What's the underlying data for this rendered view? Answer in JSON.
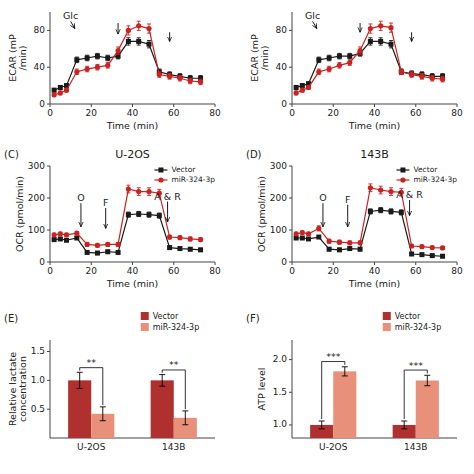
{
  "chart_data": [
    {
      "type": "line",
      "xlabel": "Time (min)",
      "ylabel": "ECAR (mP\n/min)",
      "xlim": [
        0,
        80
      ],
      "ylim": [
        0,
        100
      ],
      "xticks": [
        0,
        20,
        40,
        60,
        80
      ],
      "yticks": [
        0,
        40,
        80
      ],
      "series": [
        {
          "color": "#1a1a1a",
          "marker": "square",
          "x": [
            2,
            5,
            8,
            13,
            18,
            23,
            28,
            33,
            38,
            43,
            48,
            53,
            58,
            63,
            68,
            73
          ],
          "values": [
            15,
            18,
            20,
            48,
            50,
            52,
            50,
            52,
            68,
            68,
            65,
            35,
            32,
            30,
            28,
            28
          ],
          "errors": [
            2,
            2,
            2,
            3,
            3,
            3,
            3,
            3,
            4,
            4,
            4,
            3,
            3,
            3,
            3,
            3
          ]
        },
        {
          "color": "#cc2222",
          "marker": "circle",
          "x": [
            2,
            5,
            8,
            13,
            18,
            23,
            28,
            33,
            38,
            43,
            48,
            53,
            58,
            63,
            68,
            73
          ],
          "values": [
            10,
            12,
            15,
            35,
            38,
            40,
            42,
            58,
            80,
            85,
            82,
            32,
            30,
            28,
            25,
            24
          ],
          "errors": [
            2,
            2,
            2,
            3,
            3,
            3,
            3,
            4,
            5,
            5,
            5,
            3,
            3,
            3,
            3,
            3
          ]
        }
      ],
      "annotations": [
        {
          "label": "Glc",
          "x": 10,
          "y": 92,
          "ax": 12,
          "ay": 82
        },
        {
          "x": 33,
          "y": 88,
          "ax": 33,
          "ay": 76
        },
        {
          "x": 58,
          "y": 78,
          "ax": 58,
          "ay": 68
        }
      ]
    },
    {
      "type": "line",
      "xlabel": "Time (min)",
      "ylabel": "ECAR (mP\n/min)",
      "xlim": [
        0,
        80
      ],
      "ylim": [
        0,
        100
      ],
      "xticks": [
        0,
        20,
        40,
        60,
        80
      ],
      "yticks": [
        0,
        40,
        80
      ],
      "series": [
        {
          "color": "#1a1a1a",
          "marker": "square",
          "x": [
            2,
            5,
            8,
            13,
            18,
            23,
            28,
            33,
            38,
            43,
            48,
            53,
            58,
            63,
            68,
            73
          ],
          "values": [
            18,
            20,
            22,
            48,
            50,
            52,
            52,
            55,
            68,
            68,
            65,
            35,
            33,
            32,
            30,
            30
          ],
          "errors": [
            2,
            2,
            2,
            3,
            3,
            3,
            3,
            3,
            4,
            4,
            4,
            3,
            3,
            3,
            3,
            3
          ]
        },
        {
          "color": "#cc2222",
          "marker": "circle",
          "x": [
            2,
            5,
            8,
            13,
            18,
            23,
            28,
            33,
            38,
            43,
            48,
            53,
            58,
            63,
            68,
            73
          ],
          "values": [
            12,
            15,
            18,
            35,
            38,
            42,
            45,
            58,
            82,
            85,
            83,
            35,
            32,
            30,
            28,
            27
          ],
          "errors": [
            2,
            2,
            2,
            3,
            3,
            3,
            3,
            4,
            5,
            5,
            5,
            3,
            3,
            3,
            3,
            3
          ]
        }
      ],
      "annotations": [
        {
          "label": "Glc",
          "x": 10,
          "y": 92,
          "ax": 12,
          "ay": 82
        },
        {
          "x": 33,
          "y": 88,
          "ax": 33,
          "ay": 78
        },
        {
          "x": 58,
          "y": 78,
          "ax": 58,
          "ay": 68
        }
      ]
    },
    {
      "type": "line",
      "title": "U-2OS",
      "panel_label": "(C)",
      "xlabel": "Time (min)",
      "ylabel": "OCR (pmol/min)",
      "xlim": [
        0,
        80
      ],
      "ylim": [
        0,
        300
      ],
      "xticks": [
        0,
        20,
        40,
        60,
        80
      ],
      "yticks": [
        0,
        100,
        200,
        300
      ],
      "legend": "upper right",
      "series": [
        {
          "name": "Vector",
          "color": "#1a1a1a",
          "marker": "square",
          "x": [
            2,
            5,
            8,
            13,
            18,
            23,
            28,
            33,
            38,
            43,
            48,
            53,
            58,
            63,
            68,
            73
          ],
          "values": [
            70,
            72,
            68,
            75,
            30,
            28,
            32,
            30,
            148,
            150,
            148,
            145,
            45,
            42,
            40,
            38
          ],
          "errors": [
            3,
            3,
            3,
            3,
            5,
            5,
            5,
            5,
            8,
            8,
            8,
            8,
            5,
            5,
            5,
            5
          ]
        },
        {
          "name": "miR-324-3p",
          "color": "#cc2222",
          "marker": "circle",
          "x": [
            2,
            5,
            8,
            13,
            18,
            23,
            28,
            33,
            38,
            43,
            48,
            53,
            58,
            63,
            68,
            73
          ],
          "values": [
            85,
            88,
            85,
            90,
            55,
            52,
            55,
            55,
            228,
            220,
            220,
            215,
            78,
            76,
            72,
            70
          ],
          "errors": [
            5,
            5,
            5,
            5,
            6,
            6,
            6,
            6,
            12,
            12,
            12,
            12,
            6,
            6,
            6,
            6
          ]
        }
      ],
      "annotations": [
        {
          "label": "O",
          "x": 15,
          "y": 190,
          "ax": 15,
          "ay": 110
        },
        {
          "label": "F",
          "x": 27,
          "y": 175,
          "ax": 27,
          "ay": 105
        },
        {
          "label": "A & R",
          "x": 57,
          "y": 195,
          "ax": 57,
          "ay": 125
        }
      ]
    },
    {
      "type": "line",
      "title": "143B",
      "panel_label": "(D)",
      "xlabel": "Time (min)",
      "ylabel": "OCR (pmol/min)",
      "xlim": [
        0,
        80
      ],
      "ylim": [
        0,
        300
      ],
      "xticks": [
        0,
        20,
        40,
        60,
        80
      ],
      "yticks": [
        0,
        100,
        200,
        300
      ],
      "legend": "upper right",
      "series": [
        {
          "name": "Vector",
          "color": "#1a1a1a",
          "marker": "square",
          "x": [
            2,
            5,
            8,
            13,
            18,
            23,
            28,
            33,
            38,
            43,
            48,
            53,
            58,
            63,
            68,
            73
          ],
          "values": [
            75,
            75,
            72,
            78,
            40,
            38,
            42,
            40,
            158,
            162,
            158,
            155,
            25,
            23,
            20,
            18
          ],
          "errors": [
            3,
            3,
            3,
            3,
            5,
            5,
            5,
            5,
            8,
            8,
            8,
            8,
            4,
            4,
            4,
            4
          ]
        },
        {
          "name": "miR-324-3p",
          "color": "#cc2222",
          "marker": "circle",
          "x": [
            2,
            5,
            8,
            13,
            18,
            23,
            28,
            33,
            38,
            43,
            48,
            53,
            58,
            63,
            68,
            73
          ],
          "values": [
            88,
            92,
            88,
            105,
            65,
            62,
            60,
            60,
            232,
            225,
            220,
            218,
            50,
            48,
            45,
            44
          ],
          "errors": [
            5,
            5,
            5,
            8,
            6,
            6,
            6,
            6,
            12,
            12,
            12,
            12,
            5,
            5,
            5,
            5
          ]
        }
      ],
      "annotations": [
        {
          "label": "O",
          "x": 15,
          "y": 190,
          "ax": 15,
          "ay": 110
        },
        {
          "label": "F",
          "x": 27,
          "y": 185,
          "ax": 27,
          "ay": 110
        },
        {
          "label": "A & R",
          "x": 57,
          "y": 200,
          "ax": 57,
          "ay": 145
        }
      ]
    },
    {
      "type": "bar",
      "panel_label": "(E)",
      "ylabel": "Relative lactate\nconcentration",
      "ylim": [
        0,
        1.7
      ],
      "yticks": [
        0.5,
        {
          "value": 1.0,
          "label": "1.0"
        },
        1.5
      ],
      "categories": [
        "U-2OS",
        "143B"
      ],
      "legend": "upper right",
      "series": [
        {
          "name": "Vector",
          "color": "#b03030",
          "values": [
            1.0,
            1.0
          ],
          "errors": [
            0.14,
            0.1
          ]
        },
        {
          "name": "miR-324-3p",
          "color": "#e8907a",
          "values": [
            0.42,
            0.35
          ],
          "errors": [
            0.12,
            0.12
          ]
        }
      ],
      "sig_labels": [
        "**",
        "**"
      ]
    },
    {
      "type": "bar",
      "panel_label": "(F)",
      "ylabel": "ATP level",
      "ylim": [
        0.8,
        2.3
      ],
      "yticks": [
        {
          "value": 1.0,
          "label": "1.0"
        },
        1.5,
        {
          "value": 2.0,
          "label": "2.0"
        }
      ],
      "categories": [
        "U-2OS",
        "143B"
      ],
      "legend": "upper right",
      "series": [
        {
          "name": "Vector",
          "color": "#b03030",
          "values": [
            1.0,
            1.0
          ],
          "errors": [
            0.06,
            0.06
          ]
        },
        {
          "name": "miR-324-3p",
          "color": "#e8907a",
          "values": [
            1.82,
            1.68
          ],
          "errors": [
            0.07,
            0.08
          ]
        }
      ],
      "sig_labels": [
        "***",
        "***"
      ]
    }
  ]
}
